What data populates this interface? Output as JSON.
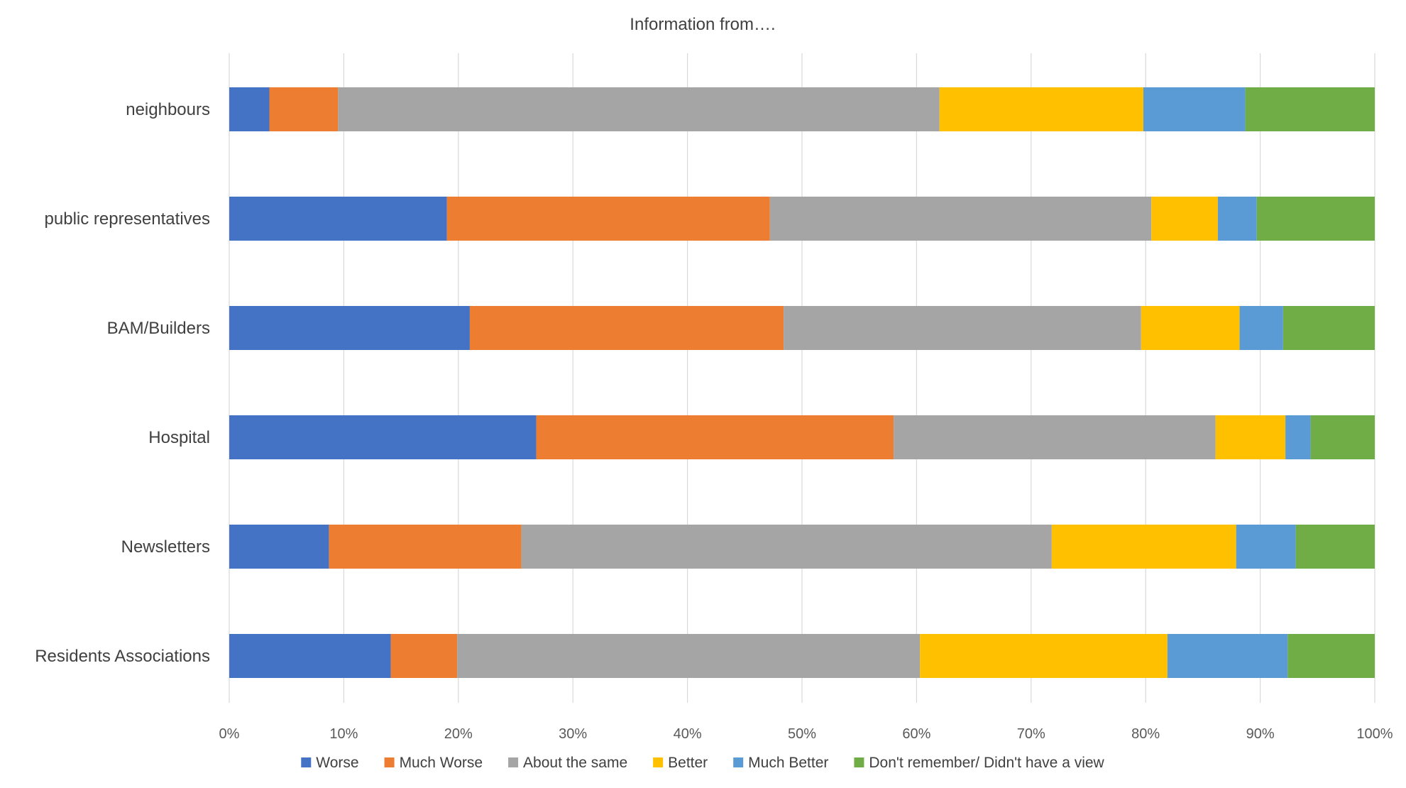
{
  "chart_data": {
    "type": "bar",
    "orientation": "horizontal",
    "stacked": "percent",
    "title": "Information from….",
    "categories": [
      "neighbours",
      "public representatives",
      "BAM/Builders",
      "Hospital",
      "Newsletters",
      "Residents  Associations"
    ],
    "xlim": [
      0,
      100
    ],
    "xticks": [
      "0%",
      "10%",
      "20%",
      "30%",
      "40%",
      "50%",
      "60%",
      "70%",
      "80%",
      "90%",
      "100%"
    ],
    "grid": true,
    "legend_position": "bottom",
    "series": [
      {
        "name": "Worse",
        "color": "#4472C4",
        "values": [
          3.5,
          19.0,
          21.0,
          26.8,
          8.7,
          14.1
        ]
      },
      {
        "name": "Much Worse",
        "color": "#ED7D31",
        "values": [
          6.0,
          28.2,
          27.4,
          31.2,
          16.8,
          5.8
        ]
      },
      {
        "name": "About the same",
        "color": "#A5A5A5",
        "values": [
          52.5,
          33.3,
          31.2,
          28.1,
          46.3,
          40.4
        ]
      },
      {
        "name": "Better",
        "color": "#FFC000",
        "values": [
          17.8,
          5.8,
          8.6,
          6.1,
          16.1,
          21.6
        ]
      },
      {
        "name": "Much Better",
        "color": "#5B9BD5",
        "values": [
          8.9,
          3.4,
          3.8,
          2.2,
          5.2,
          10.5
        ]
      },
      {
        "name": "Don't remember/ Didn't have a view",
        "color": "#70AD47",
        "values": [
          11.3,
          10.3,
          8.0,
          5.6,
          6.9,
          7.6
        ]
      }
    ]
  }
}
